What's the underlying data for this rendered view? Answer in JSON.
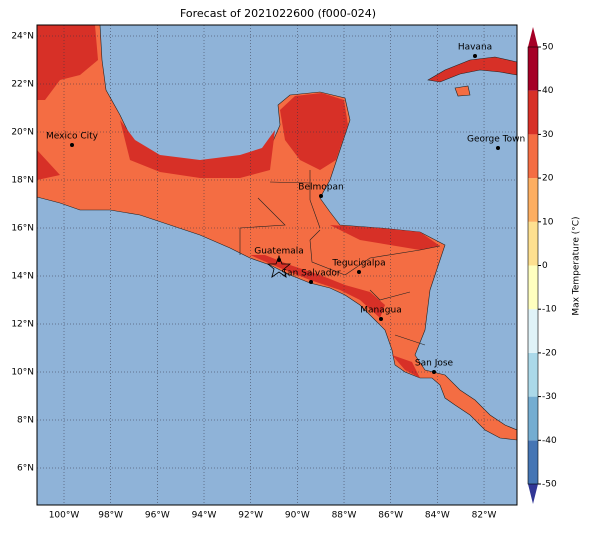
{
  "title": "Forecast of 2021022600 (f000-024)",
  "lat_labels": [
    "24°N",
    "22°N",
    "20°N",
    "18°N",
    "16°N",
    "14°N",
    "12°N",
    "10°N",
    "8°N",
    "6°N"
  ],
  "lon_labels": [
    "100°W",
    "98°W",
    "96°W",
    "94°W",
    "92°W",
    "90°W",
    "88°W",
    "86°W",
    "84°W",
    "82°W"
  ],
  "cities": [
    "Mexico City",
    "Belmopan",
    "Guatemala",
    "San Salvador",
    "Tegucigalpa",
    "Managua",
    "San Jose",
    "Havana",
    "George Town"
  ],
  "colorbar": {
    "label": "Max Temperature (°C)",
    "ticks": [
      -50,
      -40,
      -30,
      -20,
      -10,
      0,
      10,
      20,
      30,
      40,
      50
    ],
    "colors": [
      "#313695",
      "#4575b4",
      "#74add1",
      "#abd9e9",
      "#e0f3f8",
      "#ffffbf",
      "#fee090",
      "#fdae61",
      "#f46d43",
      "#d73027",
      "#a50026"
    ]
  }
}
